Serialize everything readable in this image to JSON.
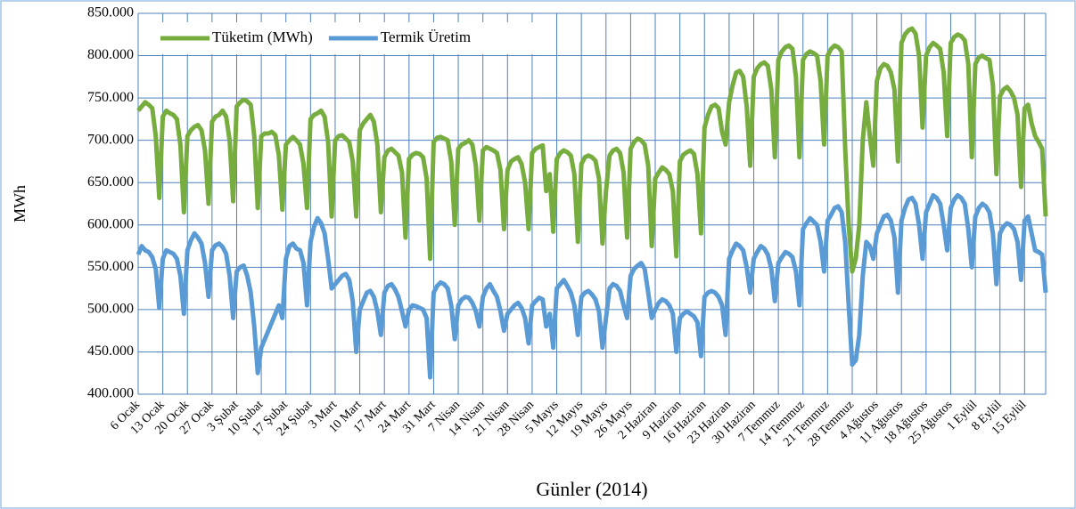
{
  "chart_data": {
    "type": "line",
    "xlabel": "Günler (2014)",
    "ylabel": "MWh",
    "categories": [
      "6 Ocak",
      null,
      null,
      null,
      null,
      null,
      null,
      "13 Ocak",
      null,
      null,
      null,
      null,
      null,
      null,
      "20 Ocak",
      null,
      null,
      null,
      null,
      null,
      null,
      "27 Ocak",
      null,
      null,
      null,
      null,
      null,
      null,
      "3 Şubat",
      null,
      null,
      null,
      null,
      null,
      null,
      "10 Şubat",
      null,
      null,
      null,
      null,
      null,
      null,
      "17 Şubat",
      null,
      null,
      null,
      null,
      null,
      null,
      "24 Şubat",
      null,
      null,
      null,
      null,
      null,
      null,
      "3 Mart",
      null,
      null,
      null,
      null,
      null,
      null,
      "10 Mart",
      null,
      null,
      null,
      null,
      null,
      null,
      "17 Mart",
      null,
      null,
      null,
      null,
      null,
      null,
      "24 Mart",
      null,
      null,
      null,
      null,
      null,
      null,
      "31 Mart",
      null,
      null,
      null,
      null,
      null,
      null,
      "7 Nisan",
      null,
      null,
      null,
      null,
      null,
      null,
      "14 Nisan",
      null,
      null,
      null,
      null,
      null,
      null,
      "21 Nisan",
      null,
      null,
      null,
      null,
      null,
      null,
      "28 Nisan",
      null,
      null,
      null,
      null,
      null,
      null,
      "5 Mayıs",
      null,
      null,
      null,
      null,
      null,
      null,
      "12 Mayıs",
      null,
      null,
      null,
      null,
      null,
      null,
      "19 Mayıs",
      null,
      null,
      null,
      null,
      null,
      null,
      "26 Mayıs",
      null,
      null,
      null,
      null,
      null,
      null,
      "2 Haziran",
      null,
      null,
      null,
      null,
      null,
      null,
      "9 Haziran",
      null,
      null,
      null,
      null,
      null,
      null,
      "16 Haziran",
      null,
      null,
      null,
      null,
      null,
      null,
      "23 Haziran",
      null,
      null,
      null,
      null,
      null,
      null,
      "30 Haziran",
      null,
      null,
      null,
      null,
      null,
      null,
      "7 Temmuz",
      null,
      null,
      null,
      null,
      null,
      null,
      "14 Temmuz",
      null,
      null,
      null,
      null,
      null,
      null,
      "21 Temmuz",
      null,
      null,
      null,
      null,
      null,
      null,
      "28 Temmuz",
      null,
      null,
      null,
      null,
      null,
      null,
      "4 Ağustos",
      null,
      null,
      null,
      null,
      null,
      null,
      "11 Ağustos",
      null,
      null,
      null,
      null,
      null,
      null,
      "18 Ağustos",
      null,
      null,
      null,
      null,
      null,
      null,
      "25 Ağustos",
      null,
      null,
      null,
      null,
      null,
      null,
      "1 Eylül",
      null,
      null,
      null,
      null,
      null,
      null,
      "8 Eylül",
      null,
      null,
      null,
      null,
      null,
      null,
      "15 Eylül",
      null,
      null,
      null,
      null,
      null,
      null
    ],
    "series": [
      {
        "name": "Tüketim (MWh)",
        "color": "#77ac3f",
        "values": [
          735000,
          740000,
          745000,
          742000,
          738000,
          705000,
          632000,
          728000,
          735000,
          732000,
          730000,
          725000,
          695000,
          615000,
          705000,
          712000,
          716000,
          718000,
          712000,
          688000,
          625000,
          722000,
          728000,
          730000,
          735000,
          728000,
          700000,
          628000,
          740000,
          745000,
          748000,
          746000,
          742000,
          705000,
          620000,
          705000,
          708000,
          708000,
          710000,
          706000,
          682000,
          618000,
          695000,
          700000,
          704000,
          700000,
          695000,
          672000,
          620000,
          725000,
          730000,
          732000,
          735000,
          728000,
          698000,
          610000,
          700000,
          705000,
          706000,
          702000,
          698000,
          675000,
          610000,
          712000,
          720000,
          725000,
          730000,
          722000,
          695000,
          615000,
          680000,
          688000,
          690000,
          686000,
          682000,
          662000,
          585000,
          678000,
          683000,
          685000,
          684000,
          680000,
          655000,
          560000,
          698000,
          703000,
          704000,
          702000,
          700000,
          675000,
          600000,
          690000,
          695000,
          697000,
          700000,
          695000,
          670000,
          605000,
          688000,
          692000,
          690000,
          688000,
          685000,
          665000,
          595000,
          665000,
          675000,
          678000,
          680000,
          672000,
          650000,
          595000,
          685000,
          690000,
          692000,
          694000,
          640000,
          660000,
          592000,
          678000,
          685000,
          688000,
          686000,
          682000,
          660000,
          580000,
          672000,
          680000,
          682000,
          680000,
          676000,
          655000,
          578000,
          640000,
          682000,
          688000,
          690000,
          685000,
          662000,
          585000,
          690000,
          698000,
          702000,
          700000,
          695000,
          670000,
          575000,
          655000,
          662000,
          668000,
          665000,
          660000,
          640000,
          563000,
          675000,
          683000,
          686000,
          688000,
          684000,
          660000,
          590000,
          715000,
          730000,
          740000,
          742000,
          738000,
          710000,
          695000,
          745000,
          765000,
          780000,
          782000,
          775000,
          740000,
          670000,
          775000,
          785000,
          790000,
          792000,
          788000,
          760000,
          680000,
          795000,
          805000,
          810000,
          812000,
          808000,
          775000,
          680000,
          795000,
          802000,
          805000,
          803000,
          800000,
          770000,
          695000,
          800000,
          808000,
          812000,
          810000,
          805000,
          690000,
          600000,
          545000,
          560000,
          600000,
          700000,
          745000,
          705000,
          670000,
          770000,
          785000,
          790000,
          788000,
          780000,
          760000,
          675000,
          815000,
          825000,
          830000,
          832000,
          826000,
          800000,
          715000,
          800000,
          810000,
          815000,
          812000,
          808000,
          780000,
          705000,
          815000,
          822000,
          825000,
          823000,
          818000,
          790000,
          680000,
          790000,
          798000,
          800000,
          797000,
          795000,
          765000,
          660000,
          752000,
          760000,
          763000,
          758000,
          750000,
          730000,
          645000,
          738000,
          742000,
          720000,
          705000,
          698000,
          690000,
          610000
        ]
      },
      {
        "name": "Termik Üretim",
        "color": "#5b9bd5",
        "values": [
          565000,
          575000,
          570000,
          568000,
          562000,
          548000,
          502000,
          560000,
          570000,
          568000,
          566000,
          560000,
          540000,
          495000,
          570000,
          582000,
          590000,
          585000,
          578000,
          555000,
          515000,
          570000,
          576000,
          578000,
          574000,
          566000,
          540000,
          490000,
          545000,
          550000,
          552000,
          540000,
          520000,
          480000,
          425000,
          455000,
          465000,
          475000,
          485000,
          495000,
          505000,
          490000,
          560000,
          575000,
          578000,
          572000,
          570000,
          555000,
          505000,
          580000,
          598000,
          608000,
          602000,
          590000,
          560000,
          525000,
          530000,
          535000,
          540000,
          542000,
          535000,
          510000,
          450000,
          500000,
          510000,
          520000,
          522000,
          515000,
          498000,
          470000,
          520000,
          528000,
          530000,
          524000,
          515000,
          498000,
          480000,
          500000,
          505000,
          504000,
          502000,
          500000,
          490000,
          420000,
          520000,
          528000,
          532000,
          530000,
          525000,
          505000,
          465000,
          505000,
          512000,
          515000,
          514000,
          508000,
          498000,
          480000,
          515000,
          525000,
          530000,
          522000,
          515000,
          498000,
          475000,
          495000,
          500000,
          505000,
          508000,
          502000,
          490000,
          460000,
          505000,
          510000,
          514000,
          512000,
          480000,
          495000,
          455000,
          525000,
          530000,
          535000,
          528000,
          520000,
          505000,
          470000,
          515000,
          520000,
          522000,
          518000,
          512000,
          498000,
          455000,
          490000,
          525000,
          530000,
          528000,
          522000,
          505000,
          490000,
          540000,
          548000,
          552000,
          555000,
          548000,
          520000,
          490000,
          500000,
          508000,
          512000,
          510000,
          505000,
          495000,
          450000,
          490000,
          495000,
          498000,
          495000,
          492000,
          485000,
          445000,
          515000,
          520000,
          522000,
          520000,
          515000,
          505000,
          470000,
          560000,
          570000,
          578000,
          575000,
          570000,
          550000,
          520000,
          560000,
          568000,
          575000,
          572000,
          565000,
          548000,
          510000,
          555000,
          562000,
          568000,
          566000,
          562000,
          545000,
          505000,
          595000,
          602000,
          608000,
          604000,
          600000,
          580000,
          545000,
          605000,
          612000,
          620000,
          622000,
          615000,
          580000,
          505000,
          435000,
          440000,
          470000,
          540000,
          580000,
          575000,
          560000,
          590000,
          600000,
          610000,
          612000,
          605000,
          585000,
          520000,
          605000,
          620000,
          630000,
          632000,
          625000,
          600000,
          560000,
          615000,
          625000,
          635000,
          632000,
          625000,
          600000,
          570000,
          620000,
          630000,
          635000,
          632000,
          625000,
          595000,
          550000,
          610000,
          620000,
          625000,
          622000,
          615000,
          590000,
          530000,
          590000,
          598000,
          602000,
          600000,
          595000,
          580000,
          535000,
          605000,
          610000,
          590000,
          570000,
          568000,
          565000,
          520000
        ]
      }
    ],
    "ylim": [
      400000,
      850000
    ],
    "yticks": [
      {
        "value": 400000,
        "label": "400.000"
      },
      {
        "value": 450000,
        "label": "450.000"
      },
      {
        "value": 500000,
        "label": "500.000"
      },
      {
        "value": 550000,
        "label": "550.000"
      },
      {
        "value": 600000,
        "label": "600.000"
      },
      {
        "value": 650000,
        "label": "650.000"
      },
      {
        "value": 700000,
        "label": "700.000"
      },
      {
        "value": 750000,
        "label": "750.000"
      },
      {
        "value": 800000,
        "label": "800.000"
      },
      {
        "value": 850000,
        "label": "850.000"
      }
    ],
    "grid": true,
    "legend": "top-left"
  }
}
